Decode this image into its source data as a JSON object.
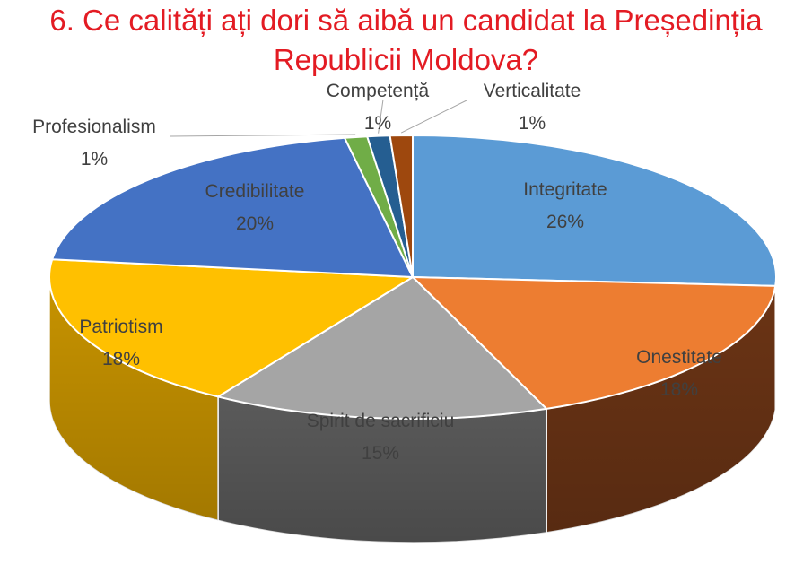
{
  "chart_data": {
    "type": "pie",
    "title_lines": [
      "6. Ce calități ați dori să aibă un candidat la Președinția",
      "Republicii Moldova?"
    ],
    "slices": [
      {
        "label": "Integritate",
        "value": 26,
        "value_label": "26%",
        "color": "#5b9bd5",
        "side": "#3f6e98"
      },
      {
        "label": "Onestitate",
        "value": 18,
        "value_label": "18%",
        "color": "#ed7d31",
        "side": "#6b3415"
      },
      {
        "label": "Spirit de sacrificiu",
        "value": 15,
        "value_label": "15%",
        "color": "#a5a5a5",
        "side": "#5a5a5a"
      },
      {
        "label": "Patriotism",
        "value": 18,
        "value_label": "18%",
        "color": "#ffc000",
        "side": "#c79300"
      },
      {
        "label": "Credibilitate",
        "value": 20,
        "value_label": "20%",
        "color": "#4472c4",
        "side": "#2c4c85"
      },
      {
        "label": "Profesionalism",
        "value": 1,
        "value_label": "1%",
        "color": "#70ad47",
        "side": "#4a7a2c"
      },
      {
        "label": "Competență",
        "value": 1,
        "value_label": "1%",
        "color": "#255e91",
        "side": "#163a5a"
      },
      {
        "label": "Verticalitate",
        "value": 1,
        "value_label": "1%",
        "color": "#9e480e",
        "side": "#5e2a08"
      }
    ]
  }
}
